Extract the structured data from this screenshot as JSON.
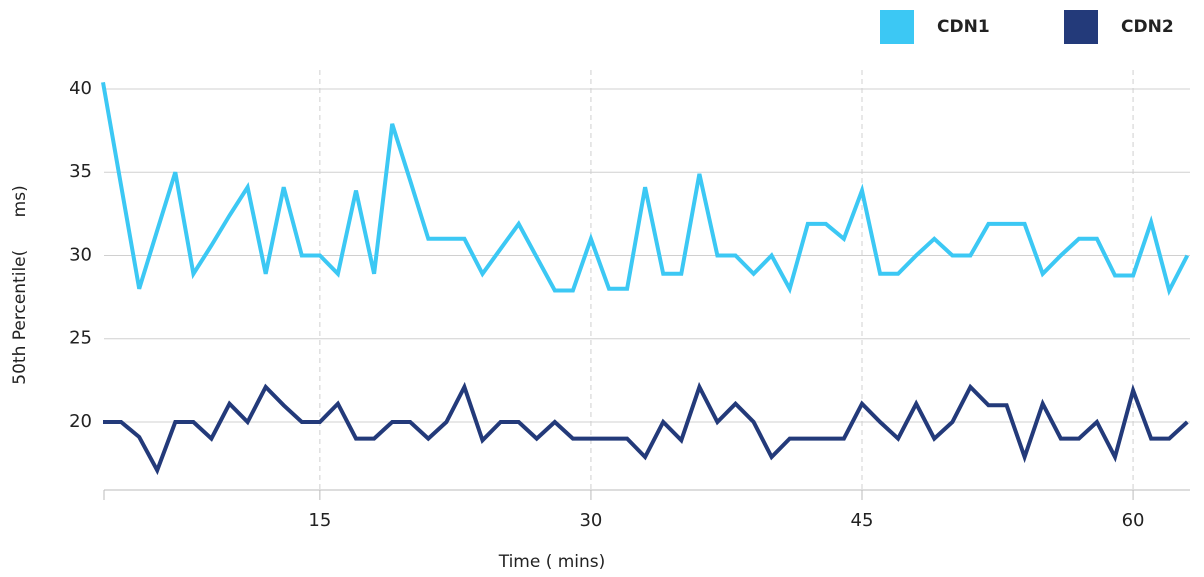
{
  "chart_data": {
    "type": "line",
    "x_label": "Time ( mins)",
    "y_label": "50th Percentile(      ms)",
    "x": [
      3,
      4,
      5,
      6,
      7,
      8,
      9,
      10,
      11,
      12,
      13,
      14,
      15,
      16,
      17,
      18,
      19,
      20,
      21,
      22,
      23,
      24,
      25,
      26,
      27,
      28,
      29,
      30,
      31,
      32,
      33,
      34,
      35,
      36,
      37,
      38,
      39,
      40,
      41,
      42,
      43,
      44,
      45,
      46,
      47,
      48,
      49,
      50,
      51,
      52,
      53,
      54,
      55,
      56,
      57,
      58,
      59,
      60,
      61,
      62,
      63
    ],
    "series": [
      {
        "name": "CDN1",
        "color": "#3cc8f4",
        "values": [
          40.4,
          34.2,
          28,
          31.5,
          35,
          28.9,
          30.6,
          32.4,
          34.1,
          28.9,
          34.1,
          30,
          30,
          28.9,
          33.9,
          28.9,
          37.9,
          34.5,
          31,
          31,
          31,
          28.9,
          30.4,
          31.9,
          29.9,
          27.9,
          27.9,
          31,
          28,
          28,
          34.1,
          28.9,
          28.9,
          34.9,
          30,
          30,
          28.9,
          30,
          28,
          31.9,
          31.9,
          31,
          33.9,
          28.9,
          28.9,
          30,
          31,
          30,
          30,
          31.9,
          31.9,
          31.9,
          28.9,
          30,
          31,
          31,
          28.8,
          28.8,
          32,
          27.9,
          30
        ]
      },
      {
        "name": "CDN2",
        "color": "#233a7a",
        "values": [
          20,
          20,
          19.1,
          17.1,
          20,
          20,
          19,
          21.1,
          20,
          22.1,
          21,
          20,
          20,
          21.1,
          19,
          19,
          20,
          20,
          19,
          20,
          22.1,
          18.9,
          20,
          20,
          19,
          20,
          19,
          19,
          19,
          19,
          17.9,
          20,
          18.9,
          22.1,
          20,
          21.1,
          20,
          17.9,
          19,
          19,
          19,
          19,
          21.1,
          20,
          19,
          21.1,
          19,
          20,
          22.1,
          21,
          21,
          17.9,
          21.1,
          19,
          19,
          20,
          17.9,
          21.9,
          19,
          19,
          20
        ]
      }
    ],
    "xlim": [
      2.85,
      63.15
    ],
    "xticks": [
      15,
      30,
      45,
      60
    ],
    "ylim": [
      16,
      41.2
    ],
    "yticks": [
      20,
      25,
      30,
      35,
      40
    ],
    "grid": true,
    "legend": "top-right"
  }
}
